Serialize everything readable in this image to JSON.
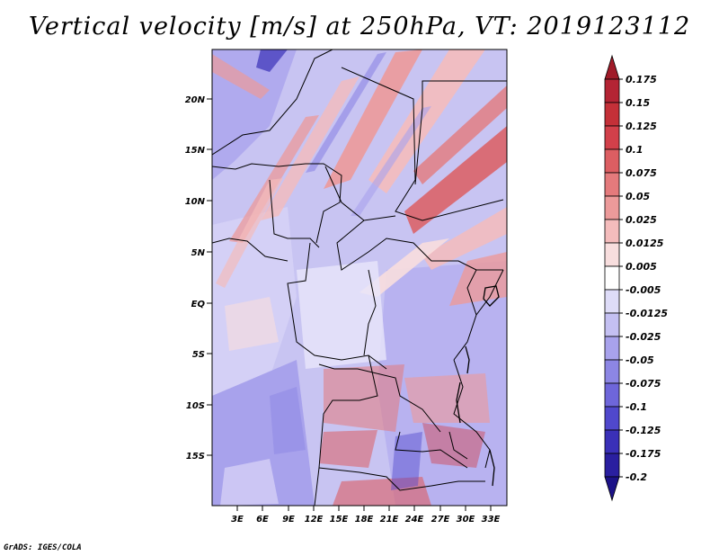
{
  "title": "Vertical velocity [m/s] at 250hPa, VT: 2019123112",
  "credit": "GrADS: IGES/COLA",
  "map": {
    "lat_labels": [
      "20N",
      "15N",
      "10N",
      "5N",
      "EQ",
      "5S",
      "10S",
      "15S"
    ],
    "lon_labels": [
      "3E",
      "6E",
      "9E",
      "12E",
      "15E",
      "18E",
      "21E",
      "24E",
      "27E",
      "30E",
      "33E"
    ]
  },
  "colorbar": {
    "labels": [
      "0.175",
      "0.15",
      "0.125",
      "0.1",
      "0.075",
      "0.05",
      "0.025",
      "0.0125",
      "0.005",
      "-0.005",
      "-0.0125",
      "-0.025",
      "-0.05",
      "-0.075",
      "-0.1",
      "-0.125",
      "-0.175",
      "-0.2"
    ],
    "colors": [
      "#a01a28",
      "#b42434",
      "#c43038",
      "#d2404a",
      "#dc5e62",
      "#e47a7c",
      "#ec9a9a",
      "#f4bcbc",
      "#f8dede",
      "#ffffff",
      "#dedcf8",
      "#c4c0f2",
      "#a8a2ec",
      "#8c86e4",
      "#6e66da",
      "#5048cc",
      "#3a30b8",
      "#2a1fa0",
      "#1c1288"
    ]
  }
}
